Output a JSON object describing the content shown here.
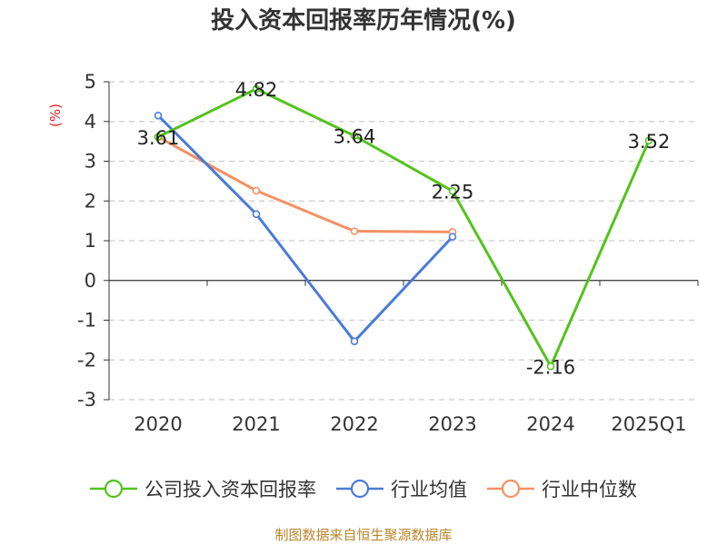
{
  "chart_data": {
    "type": "line",
    "title": "投入资本回报率历年情况(%)",
    "ylabel": "(%)",
    "categories": [
      "2020",
      "2021",
      "2022",
      "2023",
      "2024",
      "2025Q1"
    ],
    "ylim": [
      -3,
      5
    ],
    "yticks": [
      5,
      4,
      3,
      2,
      1,
      0,
      -1,
      -2,
      -3
    ],
    "grid": true,
    "legend_position": "bottom",
    "series": [
      {
        "name": "公司投入资本回报率",
        "color": "#52c41a",
        "values": [
          3.61,
          4.82,
          3.64,
          2.25,
          -2.16,
          3.52
        ],
        "labels": [
          "3.61",
          "4.82",
          "3.64",
          "2.25",
          "-2.16",
          "3.52"
        ]
      },
      {
        "name": "行业均值",
        "color": "#4a7bd8",
        "values": [
          4.15,
          1.67,
          -1.53,
          1.1,
          null,
          null
        ]
      },
      {
        "name": "行业中位数",
        "color": "#f59062",
        "values": [
          3.61,
          2.26,
          1.24,
          1.22,
          null,
          null
        ]
      }
    ]
  },
  "source": "制图数据来自恒生聚源数据库"
}
